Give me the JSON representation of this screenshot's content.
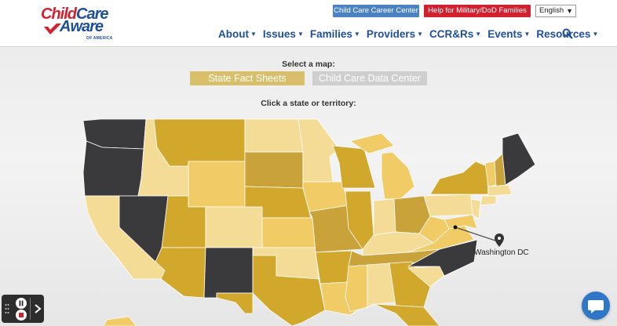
{
  "header": {
    "logo": {
      "line1_a": "Child",
      "line1_b": "Care",
      "line2": "Aware",
      "sub": "OF AMERICA"
    },
    "top_buttons": {
      "career": "Child Care Career Center",
      "military": "Help for Military/DoD Families"
    },
    "language": {
      "selected": "English"
    },
    "nav": [
      {
        "label": "About"
      },
      {
        "label": "Issues"
      },
      {
        "label": "Families"
      },
      {
        "label": "Providers"
      },
      {
        "label": "CCR&Rs"
      },
      {
        "label": "Events"
      },
      {
        "label": "Resources"
      }
    ]
  },
  "map_section": {
    "select_label": "Select a map:",
    "tabs": {
      "fact_sheets": "State Fact Sheets",
      "data_center": "Child Care Data Center"
    },
    "click_label": "Click a state or territory:",
    "dc_label": "Washington DC"
  },
  "colors": {
    "dark": "#3a3a3c",
    "gold": "#d2a82c",
    "pale": "#f5dc96",
    "light": "#f0cb66",
    "mustard": "#c9a23a",
    "brand_blue": "#1e4f9a",
    "brand_red": "#d3202f"
  },
  "icons": {
    "search": "search-icon",
    "caret": "chevron-down-icon",
    "pin": "map-pin-icon",
    "chat": "chat-icon",
    "pause": "pause-icon",
    "stop": "stop-icon",
    "next": "chevron-right-icon",
    "grip": "drag-handle-icon"
  }
}
